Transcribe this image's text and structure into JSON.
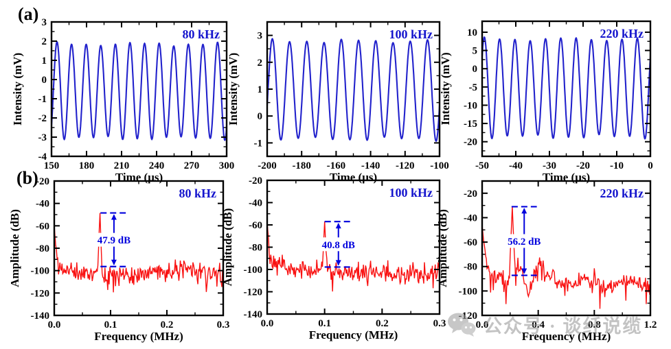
{
  "figure": {
    "panel_a_tag": "(a)",
    "panel_b_tag": "(b)",
    "background": "#ffffff"
  },
  "colors": {
    "signal_blue": "#2222cc",
    "spectrum_red": "#f91010",
    "annotation_blue": "#0000dd",
    "label_blue": "#1414cd",
    "axis_black": "#000000",
    "watermark_grey": "#919191"
  },
  "watermark": {
    "icon": "wechat-icon",
    "text": "公众号 · 谈纤说缆"
  },
  "chart_data": [
    {
      "id": "a-80khz",
      "type": "line",
      "role": "waveform",
      "panel_label": "80 kHz",
      "xlabel": "Time (μs)",
      "ylabel": "Intensity (mV)",
      "xlim": [
        150,
        300
      ],
      "ylim": [
        -4,
        3
      ],
      "x_ticks": [
        150,
        180,
        210,
        240,
        270,
        300
      ],
      "x_tick_labels": [
        "150",
        "180",
        "210",
        "240",
        "270",
        "300"
      ],
      "y_ticks": [
        3,
        2,
        1,
        0,
        -1,
        -2,
        -3,
        -4
      ],
      "y_tick_labels": [
        "3",
        "2",
        "1",
        "0",
        "-1",
        "-2",
        "-3",
        "-4"
      ],
      "x_minor_step": 15,
      "y_minor_step": 0.5,
      "line_color": "#2222cc",
      "signal": {
        "frequency_kHz": 80,
        "period_us": 12.5,
        "amplitude_mV": 2.45,
        "offset_mV": -0.6,
        "first_peak_us": 154.7,
        "cycles_shown": 12
      }
    },
    {
      "id": "a-100khz",
      "type": "line",
      "role": "waveform",
      "panel_label": "100 kHz",
      "xlabel": "Time (μs)",
      "ylabel": "Intensity (mV)",
      "xlim": [
        -200,
        -100
      ],
      "ylim": [
        -1.5,
        3.5
      ],
      "x_ticks": [
        -200,
        -180,
        -160,
        -140,
        -120,
        -100
      ],
      "x_tick_labels": [
        "-200",
        "-180",
        "-160",
        "-140",
        "-120",
        "-100"
      ],
      "y_ticks": [
        3,
        2,
        1,
        0,
        -1
      ],
      "y_tick_labels": [
        "3",
        "2",
        "1",
        "0",
        "-1"
      ],
      "x_minor_step": 10,
      "y_minor_step": 0.5,
      "line_color": "#2222cc",
      "signal": {
        "frequency_kHz": 100,
        "period_us": 10,
        "amplitude_mV": 1.82,
        "offset_mV": 0.97,
        "first_peak_us": -197.0,
        "cycles_shown": 10
      }
    },
    {
      "id": "a-220khz",
      "type": "line",
      "role": "waveform",
      "panel_label": "220 kHz",
      "xlabel": "Time (μs)",
      "ylabel": "Intensity (mV)",
      "xlim": [
        -50,
        0
      ],
      "ylim": [
        -24,
        13
      ],
      "x_ticks": [
        -50,
        -40,
        -30,
        -20,
        -10,
        0
      ],
      "x_tick_labels": [
        "-50",
        "-40",
        "-30",
        "-20",
        "-10",
        "0"
      ],
      "y_ticks": [
        10,
        5,
        0,
        -5,
        -10,
        -15,
        -20
      ],
      "y_tick_labels": [
        "10",
        "5",
        "0",
        "-5",
        "-10",
        "-15",
        "-20"
      ],
      "x_minor_step": 5,
      "y_minor_step": 2.5,
      "line_color": "#2222cc",
      "signal": {
        "frequency_kHz": 220,
        "period_us": 4.5455,
        "amplitude_mV": 13.35,
        "offset_mV": -5.25,
        "first_peak_us": -49.35,
        "cycles_shown": 11
      }
    },
    {
      "id": "b-80khz",
      "type": "line",
      "role": "spectrum",
      "panel_label": "80 kHz",
      "xlabel": "Frequency (MHz)",
      "ylabel": "Amplitude (dB)",
      "xlim": [
        0,
        0.3
      ],
      "ylim": [
        -140,
        -20
      ],
      "x_ticks": [
        0,
        0.1,
        0.2,
        0.3
      ],
      "x_tick_labels": [
        "0.0",
        "0.1",
        "0.2",
        "0.3"
      ],
      "y_ticks": [
        -20,
        -40,
        -60,
        -80,
        -100,
        -120,
        -140
      ],
      "y_tick_labels": [
        "-20",
        "-40",
        "-60",
        "-80",
        "-100",
        "-120",
        "-140"
      ],
      "x_minor_step": 0.05,
      "y_minor_step": 10,
      "line_color": "#f91010",
      "spectrum": {
        "noise_floor_dB": -103,
        "noise_sigma_dB": 4.2,
        "seed": 11,
        "dc_level_dB": -60,
        "anchors": [
          [
            0,
            -60
          ],
          [
            0.003,
            -80
          ],
          [
            0.008,
            -98
          ],
          [
            0.05,
            -102
          ],
          [
            0.15,
            -103
          ],
          [
            0.235,
            -98
          ],
          [
            0.3,
            -104
          ]
        ],
        "peak": {
          "freq_MHz": 0.081,
          "top_dB": -48.5,
          "halfwidth_MHz": 0.004
        },
        "snr_annotation": {
          "label": "47.9 dB",
          "value_dB": 47.9,
          "upper_dB": -48.5,
          "lower_dB": -96.4,
          "x_from": 0.082,
          "x_to": 0.127,
          "arrow_x": 0.106
        }
      }
    },
    {
      "id": "b-100khz",
      "type": "line",
      "role": "spectrum",
      "panel_label": "100 kHz",
      "xlabel": "Frequency (MHz)",
      "ylabel": "Amplitude (dB)",
      "xlim": [
        0,
        0.3
      ],
      "ylim": [
        -140,
        -20
      ],
      "x_ticks": [
        0,
        0.1,
        0.2,
        0.3
      ],
      "x_tick_labels": [
        "0.0",
        "0.1",
        "0.2",
        "0.3"
      ],
      "y_ticks": [
        -20,
        -40,
        -60,
        -80,
        -100,
        -120,
        -140
      ],
      "y_tick_labels": [
        "-20",
        "-40",
        "-60",
        "-80",
        "-100",
        "-120",
        "-140"
      ],
      "x_minor_step": 0.05,
      "y_minor_step": 10,
      "line_color": "#f91010",
      "spectrum": {
        "noise_floor_dB": -102,
        "noise_sigma_dB": 4.2,
        "seed": 23,
        "dc_level_dB": -58,
        "anchors": [
          [
            0,
            -58
          ],
          [
            0.004,
            -82
          ],
          [
            0.01,
            -97
          ],
          [
            0.022,
            -92
          ],
          [
            0.035,
            -99
          ],
          [
            0.09,
            -100
          ],
          [
            0.18,
            -103
          ],
          [
            0.25,
            -105
          ],
          [
            0.3,
            -104
          ]
        ],
        "peak": {
          "freq_MHz": 0.1,
          "top_dB": -57,
          "halfwidth_MHz": 0.004
        },
        "snr_annotation": {
          "label": "40.8 dB",
          "value_dB": 40.8,
          "upper_dB": -57,
          "lower_dB": -97.8,
          "x_from": 0.1,
          "x_to": 0.147,
          "arrow_x": 0.124
        }
      }
    },
    {
      "id": "b-220khz",
      "type": "line",
      "role": "spectrum",
      "panel_label": "220 kHz",
      "xlabel": "Frequency (MHz)",
      "ylabel": "Amplitude (dB)",
      "xlim": [
        0,
        1.2
      ],
      "ylim": [
        -120,
        -10
      ],
      "x_ticks": [
        0,
        0.4,
        0.8,
        1.2
      ],
      "x_tick_labels": [
        "0.0",
        "0.4",
        "0.8",
        "1.2"
      ],
      "y_ticks": [
        -20,
        -40,
        -60,
        -80,
        -100,
        -120
      ],
      "y_tick_labels": [
        "-20",
        "-40",
        "-60",
        "-80",
        "-100",
        "-120"
      ],
      "x_minor_step": 0.2,
      "y_minor_step": 10,
      "line_color": "#f91010",
      "spectrum": {
        "noise_floor_dB": -90,
        "noise_sigma_dB": 3.4,
        "seed": 5,
        "dc_level_dB": -46,
        "anchors": [
          [
            0,
            -46
          ],
          [
            0.02,
            -70
          ],
          [
            0.05,
            -85
          ],
          [
            0.1,
            -89
          ],
          [
            0.14,
            -86
          ],
          [
            0.17,
            -98
          ],
          [
            0.19,
            -88
          ],
          [
            0.25,
            -79
          ],
          [
            0.28,
            -82
          ],
          [
            0.33,
            -102
          ],
          [
            0.37,
            -87
          ],
          [
            0.42,
            -74
          ],
          [
            0.45,
            -88
          ],
          [
            0.52,
            -89
          ],
          [
            0.6,
            -94
          ],
          [
            0.75,
            -90
          ],
          [
            0.9,
            -95
          ],
          [
            1.05,
            -92
          ],
          [
            1.2,
            -97
          ]
        ],
        "peak": {
          "freq_MHz": 0.215,
          "top_dB": -31,
          "halfwidth_MHz": 0.02
        },
        "snr_annotation": {
          "label": "56.2 dB",
          "value_dB": 56.2,
          "upper_dB": -31,
          "lower_dB": -87.2,
          "x_from": 0.21,
          "x_to": 0.39,
          "arrow_x": 0.3
        }
      }
    }
  ]
}
